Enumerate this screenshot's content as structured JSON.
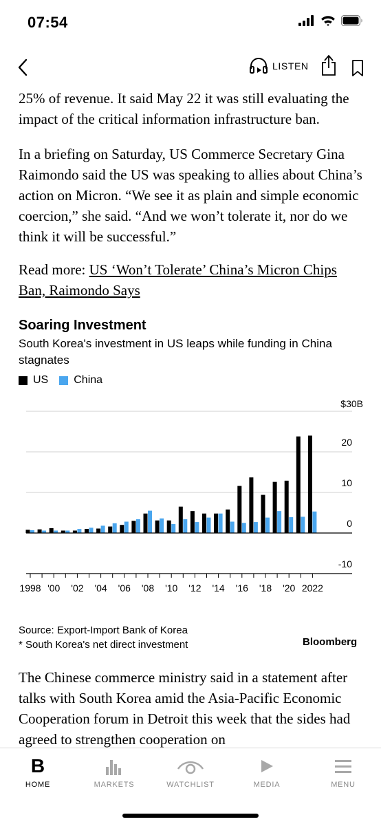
{
  "status": {
    "time": "07:54"
  },
  "nav": {
    "listen_label": "LISTEN"
  },
  "article": {
    "p1": "25% of revenue. It said May 22 it was still evaluating the impact of the critical information infrastructure ban.",
    "p2": "In a briefing on Saturday, US Commerce Secretary Gina Raimondo said the US was speaking to allies about China’s action on Micron. “We see it as plain and simple economic coercion,” she said. “And we won’t tolerate it, nor do we think it will be successful.”",
    "read_more_prefix": "Read more: ",
    "read_more_link": "US ‘Won’t Tolerate’ China’s Micron Chips Ban, Raimondo Says",
    "p4": "The Chinese commerce ministry said in a statement after talks with South Korea amid the Asia-Pacific Economic Cooperation forum in Detroit this week that the sides had agreed to strengthen cooperation on"
  },
  "chart": {
    "title": "Soaring Investment",
    "subtitle": "South Korea's investment in US leaps while funding in China stagnates",
    "source": "Source: Export-Import Bank of Korea",
    "note": "* South Korea's net direct investment",
    "brand": "Bloomberg"
  },
  "chart_data": {
    "type": "bar",
    "title": "Soaring Investment",
    "subtitle": "South Korea's investment in US leaps while funding in China stagnates",
    "categories": [
      "1998",
      "1999",
      "2000",
      "2001",
      "2002",
      "2003",
      "2004",
      "2005",
      "2006",
      "2007",
      "2008",
      "2009",
      "2010",
      "2011",
      "2012",
      "2013",
      "2014",
      "2015",
      "2016",
      "2017",
      "2018",
      "2019",
      "2020",
      "2021",
      "2022"
    ],
    "x_tick_labels": [
      "1998",
      "'00",
      "'02",
      "'04",
      "'06",
      "'08",
      "'10",
      "'12",
      "'14",
      "'16",
      "'18",
      "'20",
      "2022"
    ],
    "series": [
      {
        "name": "US",
        "color": "#000000",
        "values": [
          0.8,
          0.9,
          1.2,
          0.6,
          0.6,
          1.0,
          1.1,
          1.6,
          2.0,
          3.0,
          4.8,
          3.1,
          3.1,
          6.5,
          5.4,
          4.8,
          4.8,
          5.8,
          11.6,
          13.7,
          9.4,
          12.6,
          12.9,
          23.8,
          24.0
        ]
      },
      {
        "name": "China",
        "color": "#4aa6ee",
        "values": [
          0.7,
          0.6,
          0.6,
          0.6,
          1.0,
          1.3,
          1.8,
          2.4,
          2.8,
          3.4,
          5.5,
          3.6,
          2.2,
          3.4,
          2.7,
          3.8,
          4.8,
          2.8,
          2.5,
          2.7,
          3.8,
          5.4,
          3.9,
          4.0,
          5.3
        ]
      }
    ],
    "ylim": [
      -10,
      30
    ],
    "y_ticks": [
      -10,
      0,
      10,
      20,
      30
    ],
    "y_tick_labels": [
      "-10",
      "0",
      "10",
      "20",
      "$30B"
    ],
    "grid": true,
    "legend": "top-left"
  },
  "tabs": [
    {
      "label": "HOME",
      "active": true
    },
    {
      "label": "MARKETS",
      "active": false
    },
    {
      "label": "WATCHLIST",
      "active": false
    },
    {
      "label": "MEDIA",
      "active": false
    },
    {
      "label": "MENU",
      "active": false
    }
  ]
}
